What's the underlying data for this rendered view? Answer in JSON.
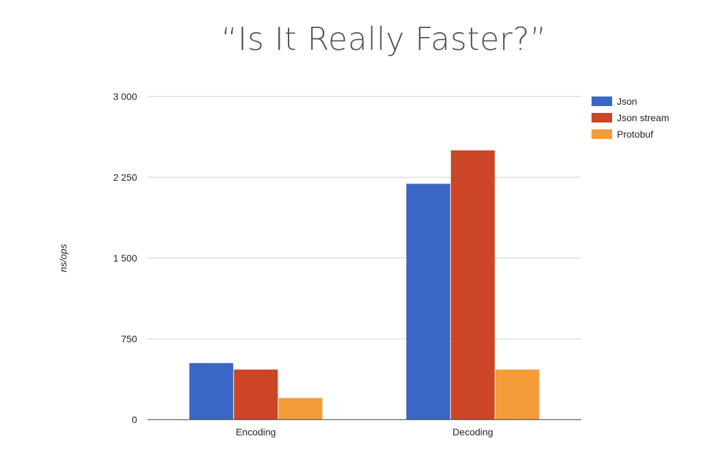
{
  "title": "“Is It Really Faster?”",
  "chart_data": {
    "type": "bar",
    "title": "“Is It Really Faster?”",
    "xlabel": "",
    "ylabel": "ns/ops",
    "categories": [
      "Encoding",
      "Decoding"
    ],
    "series": [
      {
        "name": "Json",
        "values": [
          525,
          2190
        ],
        "color": "#3a66c4"
      },
      {
        "name": "Json stream",
        "values": [
          465,
          2500
        ],
        "color": "#cc4526"
      },
      {
        "name": "Protobuf",
        "values": [
          200,
          465
        ],
        "color": "#f39c38"
      }
    ],
    "ylim": [
      0,
      3000
    ],
    "yticks": [
      0,
      750,
      1500,
      2250,
      3000
    ],
    "ytick_labels": [
      "0",
      "750",
      "1 500",
      "2 250",
      "3 000"
    ],
    "grid": true,
    "legend": "top-right"
  }
}
